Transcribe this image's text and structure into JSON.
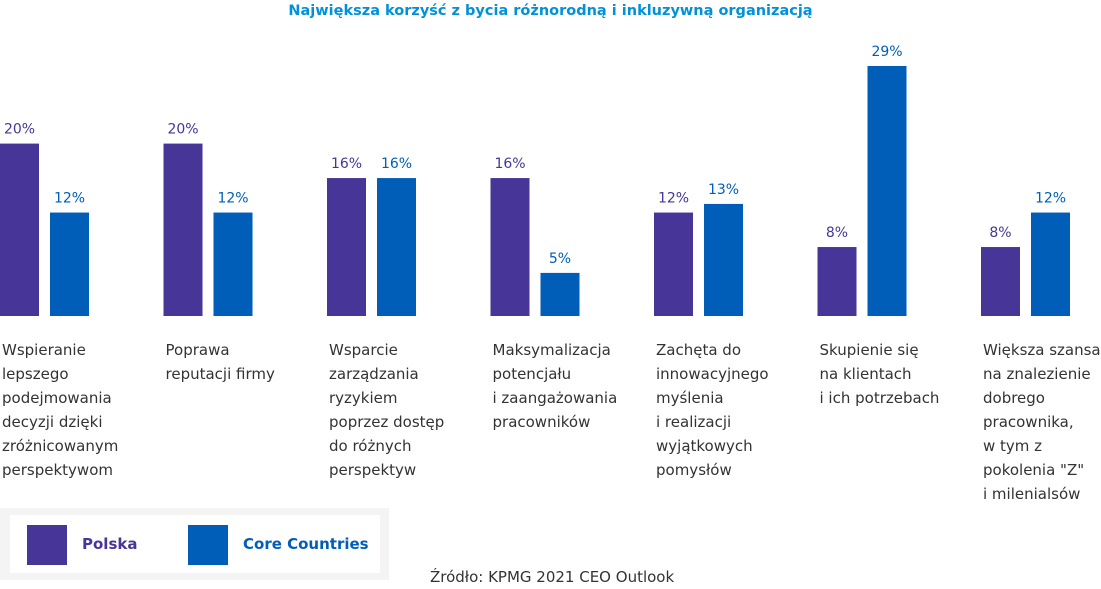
{
  "colors": {
    "polska": "#473598",
    "core": "#005eb8",
    "title": "#0091da",
    "text": "#333333"
  },
  "chart_data": {
    "type": "bar",
    "title": "Największa korzyść z bycia różnorodną i inkluzywną organizacją",
    "categories": [
      "Wspieranie\nlepszego\npodejmowania\ndecyzji dzięki\nzróżnicowanym\nperspektywom",
      "Poprawa\nreputacji firmy",
      "Wsparcie\nzarządzania\nryzykiem\npoprzez dostęp\ndo różnych\nperspektyw",
      "Maksymalizacja\npotencjału\ni zaangażowania\npracowników",
      "Zachęta do\ninnowacyjnego\nmyślenia\ni realizacji\nwyjątkowych\npomysłów",
      "Skupienie się\nna klientach\ni ich potrzebach",
      "Większa szansa\nna znalezienie\ndobrego\npracownika,\nw tym z\npokolenia \"Z\"\ni milenialsów"
    ],
    "series": [
      {
        "name": "Polska",
        "values": [
          20,
          20,
          16,
          16,
          12,
          8,
          8
        ],
        "labels": [
          "20%",
          "20%",
          "16%",
          "16%",
          "12%",
          "8%",
          "8%"
        ]
      },
      {
        "name": "Core Countries",
        "values": [
          12,
          12,
          16,
          5,
          13,
          29,
          12
        ],
        "labels": [
          "12%",
          "12%",
          "16%",
          "5%",
          "13%",
          "29%",
          "12%"
        ]
      }
    ],
    "ylim": [
      0,
      29
    ],
    "unit": "%",
    "legend": "bottom-left"
  },
  "legend": {
    "items": [
      {
        "label": "Polska"
      },
      {
        "label": "Core Countries"
      }
    ]
  },
  "source": "Źródło: KPMG 2021 CEO Outlook"
}
